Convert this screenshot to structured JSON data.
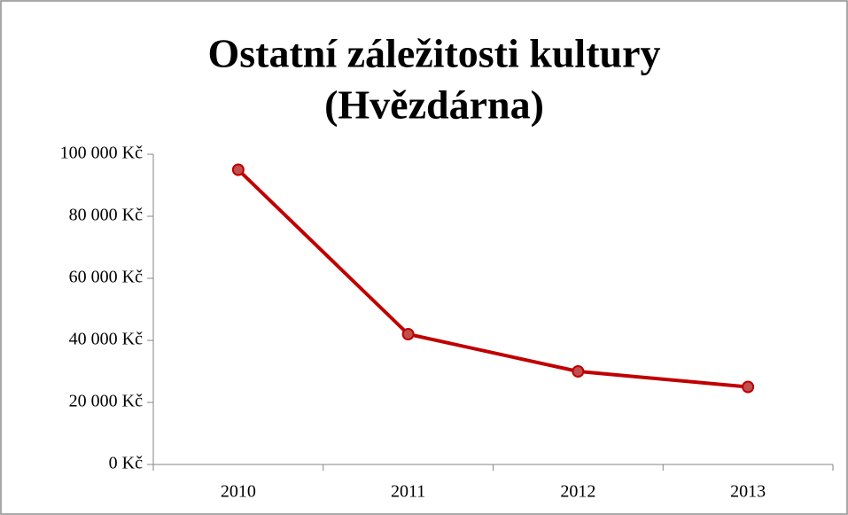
{
  "chart_data": {
    "type": "line",
    "title": [
      "Ostatní záležitosti kultury",
      "(Hvězdárna)"
    ],
    "categories": [
      "2010",
      "2011",
      "2012",
      "2013"
    ],
    "series": [
      {
        "name": "Hvězdárna",
        "color": "#c00000",
        "values": [
          95000,
          42000,
          30000,
          25000
        ]
      }
    ],
    "ylim": [
      0,
      100000
    ],
    "yticks": [
      {
        "value": 0,
        "label": "0 Kč"
      },
      {
        "value": 20000,
        "label": "20 000 Kč"
      },
      {
        "value": 40000,
        "label": "40 000 Kč"
      },
      {
        "value": 60000,
        "label": "60 000 Kč"
      },
      {
        "value": 80000,
        "label": "80 000 Kč"
      },
      {
        "value": 100000,
        "label": "100 000 Kč"
      }
    ],
    "grid": false
  }
}
